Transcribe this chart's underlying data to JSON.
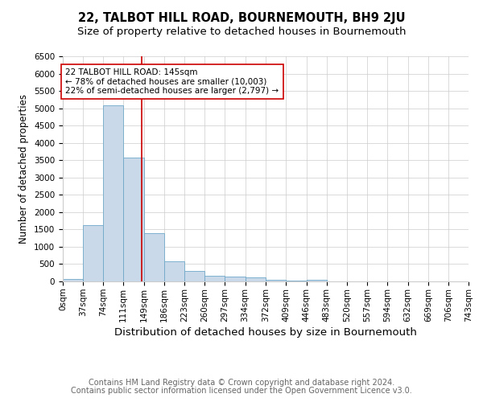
{
  "title": "22, TALBOT HILL ROAD, BOURNEMOUTH, BH9 2JU",
  "subtitle": "Size of property relative to detached houses in Bournemouth",
  "xlabel": "Distribution of detached houses by size in Bournemouth",
  "ylabel": "Number of detached properties",
  "footer_line1": "Contains HM Land Registry data © Crown copyright and database right 2024.",
  "footer_line2": "Contains public sector information licensed under the Open Government Licence v3.0.",
  "bin_edges": [
    0,
    37,
    74,
    111,
    149,
    186,
    223,
    260,
    297,
    334,
    372,
    409,
    446,
    483,
    520,
    557,
    594,
    632,
    669,
    706,
    743
  ],
  "bar_heights": [
    75,
    1620,
    5080,
    3580,
    1400,
    590,
    300,
    155,
    135,
    105,
    50,
    30,
    55,
    0,
    0,
    0,
    0,
    0,
    0,
    0
  ],
  "bar_color": "#c9d9ea",
  "bar_edgecolor": "#6fa8c8",
  "property_line_x": 145,
  "property_line_color": "#cc0000",
  "annotation_text": "22 TALBOT HILL ROAD: 145sqm\n← 78% of detached houses are smaller (10,003)\n22% of semi-detached houses are larger (2,797) →",
  "annotation_box_color": "#ffffff",
  "annotation_box_edgecolor": "#cc0000",
  "ylim": [
    0,
    6500
  ],
  "yticks": [
    0,
    500,
    1000,
    1500,
    2000,
    2500,
    3000,
    3500,
    4000,
    4500,
    5000,
    5500,
    6000,
    6500
  ],
  "background_color": "#ffffff",
  "grid_color": "#cccccc",
  "title_fontsize": 10.5,
  "subtitle_fontsize": 9.5,
  "xlabel_fontsize": 9.5,
  "ylabel_fontsize": 8.5,
  "tick_fontsize": 7.5,
  "annotation_fontsize": 7.5,
  "footer_fontsize": 7.0
}
